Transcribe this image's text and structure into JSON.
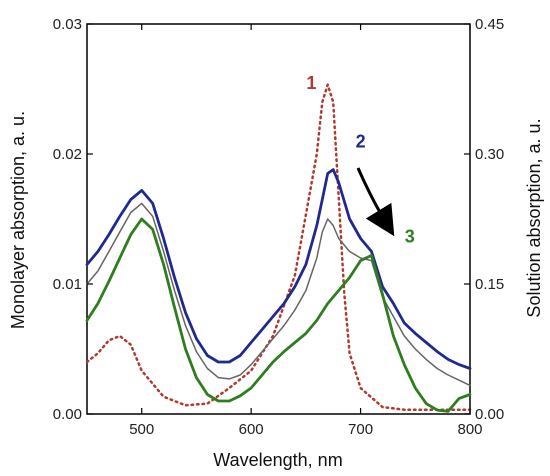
{
  "chart_data": {
    "type": "line",
    "xlabel": "Wavelength, nm",
    "ylabel_left": "Monolayer absorption, a. u.",
    "ylabel_right": "Solution absorption, a. u.",
    "xlim": [
      450,
      800
    ],
    "ylim_left": [
      0,
      0.03
    ],
    "ylim_right": [
      0,
      0.45
    ],
    "x_ticks": [
      "500",
      "600",
      "700",
      "800"
    ],
    "y_ticks_left": [
      "0.00",
      "0.01",
      "0.02",
      "0.03"
    ],
    "y_ticks_right": [
      "0.00",
      "0.15",
      "0.30",
      "0.45"
    ],
    "grid": false,
    "series": [
      {
        "name": "1",
        "axis": "right",
        "style": "dotted",
        "color": "#b03a2e",
        "x": [
          450,
          460,
          470,
          480,
          490,
          500,
          520,
          540,
          560,
          580,
          600,
          620,
          640,
          650,
          660,
          665,
          670,
          675,
          680,
          685,
          690,
          700,
          720,
          740,
          760,
          780,
          800
        ],
        "y": [
          0.06,
          0.07,
          0.085,
          0.09,
          0.08,
          0.05,
          0.02,
          0.01,
          0.012,
          0.03,
          0.05,
          0.09,
          0.16,
          0.23,
          0.3,
          0.36,
          0.38,
          0.36,
          0.25,
          0.14,
          0.07,
          0.03,
          0.008,
          0.005,
          0.005,
          0.005,
          0.005
        ]
      },
      {
        "name": "2",
        "axis": "left",
        "style": "solid",
        "color": "#1f2a8c",
        "x": [
          450,
          460,
          470,
          480,
          490,
          500,
          510,
          520,
          530,
          540,
          550,
          560,
          570,
          580,
          590,
          600,
          610,
          620,
          630,
          640,
          650,
          660,
          665,
          670,
          675,
          680,
          690,
          700,
          710,
          720,
          730,
          740,
          750,
          760,
          770,
          780,
          790,
          800
        ],
        "y": [
          0.0115,
          0.0125,
          0.0138,
          0.0152,
          0.0165,
          0.0172,
          0.0162,
          0.0135,
          0.0105,
          0.0078,
          0.0058,
          0.0045,
          0.004,
          0.004,
          0.0045,
          0.0055,
          0.0065,
          0.0075,
          0.0085,
          0.0098,
          0.0115,
          0.0145,
          0.0165,
          0.0185,
          0.0188,
          0.0178,
          0.015,
          0.0135,
          0.0125,
          0.0098,
          0.0085,
          0.007,
          0.0062,
          0.0055,
          0.0048,
          0.0042,
          0.0038,
          0.0035
        ]
      },
      {
        "name": "",
        "axis": "left",
        "style": "solid",
        "color": "#666666",
        "x": [
          450,
          460,
          470,
          480,
          490,
          500,
          510,
          520,
          530,
          540,
          550,
          560,
          570,
          580,
          590,
          600,
          610,
          620,
          630,
          640,
          650,
          660,
          665,
          670,
          675,
          680,
          690,
          700,
          710,
          720,
          730,
          740,
          750,
          760,
          770,
          780,
          790,
          800
        ],
        "y": [
          0.01,
          0.011,
          0.0125,
          0.014,
          0.0155,
          0.0162,
          0.0152,
          0.0125,
          0.0095,
          0.0068,
          0.0048,
          0.0035,
          0.0028,
          0.0027,
          0.003,
          0.0038,
          0.0048,
          0.0058,
          0.0068,
          0.008,
          0.0095,
          0.012,
          0.014,
          0.015,
          0.0145,
          0.0135,
          0.0125,
          0.012,
          0.0118,
          0.009,
          0.0075,
          0.006,
          0.005,
          0.0042,
          0.0035,
          0.003,
          0.0026,
          0.0022
        ]
      },
      {
        "name": "3",
        "axis": "left",
        "style": "solid",
        "color": "#2e7d1f",
        "x": [
          450,
          460,
          470,
          480,
          490,
          500,
          510,
          520,
          530,
          540,
          550,
          560,
          570,
          580,
          590,
          600,
          610,
          620,
          630,
          640,
          650,
          660,
          670,
          680,
          690,
          700,
          710,
          720,
          730,
          740,
          750,
          760,
          770,
          780,
          790,
          800
        ],
        "y": [
          0.0072,
          0.0085,
          0.0102,
          0.012,
          0.0138,
          0.015,
          0.0142,
          0.0115,
          0.0082,
          0.005,
          0.0028,
          0.0015,
          0.001,
          0.001,
          0.0014,
          0.002,
          0.003,
          0.004,
          0.0048,
          0.0055,
          0.0062,
          0.0072,
          0.0085,
          0.0095,
          0.0105,
          0.0118,
          0.0122,
          0.0092,
          0.006,
          0.0038,
          0.002,
          0.0008,
          0.0003,
          0.0002,
          0.0012,
          0.0015
        ]
      }
    ],
    "annotations": [
      {
        "text": "1",
        "color": "#b03a2e",
        "x": 655,
        "y": 0.025
      },
      {
        "text": "2",
        "color": "#1f2a8c",
        "x": 700,
        "y": 0.0205
      },
      {
        "text": "3",
        "color": "#2e7d1f",
        "x": 745,
        "y": 0.0132
      }
    ]
  }
}
